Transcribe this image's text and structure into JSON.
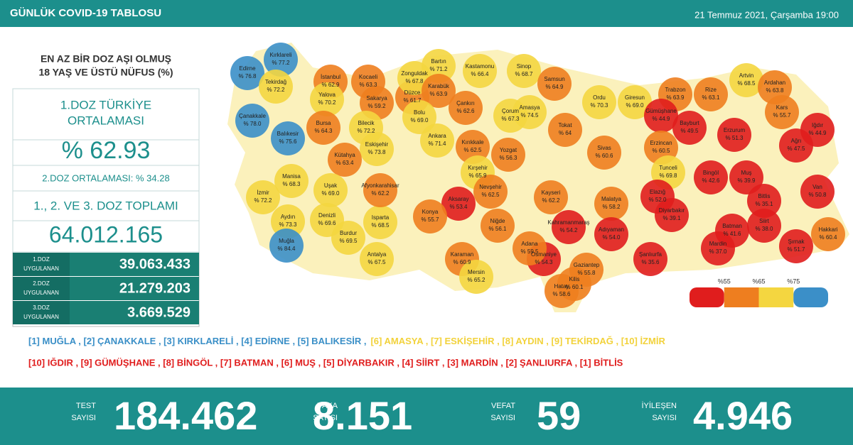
{
  "header": {
    "title": "GÜNLÜK COVID-19 TABLOSU",
    "date": "21 Temmuz 2021, Çarşamba 19:00"
  },
  "panel": {
    "title": [
      "EN AZ BİR DOZ AŞI OLMUŞ",
      "18 YAŞ VE ÜSTÜ NÜFUS (%)"
    ],
    "avg_label": [
      "1.DOZ TÜRKİYE",
      "ORTALAMASI"
    ],
    "avg_value": "% 62.93",
    "dose2_avg": "2.DOZ ORTALAMASI: % 34.28",
    "total_label": "1., 2. VE 3. DOZ TOPLAMI",
    "total_value": "64.012.165",
    "rows": [
      {
        "label": [
          "1.DOZ",
          "UYGULANAN"
        ],
        "value": "39.063.433"
      },
      {
        "label": [
          "2.DOZ",
          "UYGULANAN"
        ],
        "value": "21.279.203"
      },
      {
        "label": [
          "3.DOZ",
          "UYGULANAN"
        ],
        "value": "3.669.529"
      }
    ]
  },
  "map": {
    "legend": [
      {
        "value": 55,
        "label": "%55"
      },
      {
        "value": 65,
        "label": "%65"
      },
      {
        "value": 75,
        "label": "%75"
      }
    ],
    "colors": [
      "#e01d1d",
      "#ee7e1f",
      "#f4d640",
      "#3b8fc8"
    ],
    "provinces": [
      {
        "name": "Kırklareli",
        "value": 77.2,
        "label": "% 77.2"
      },
      {
        "name": "Edirne",
        "value": 76.8,
        "label": "% 76.8"
      },
      {
        "name": "Tekirdağ",
        "value": 72.2,
        "label": "% 72.2"
      },
      {
        "name": "İstanbul",
        "value": 62.9,
        "label": "% 62.9"
      },
      {
        "name": "Kocaeli",
        "value": 63.3,
        "label": "% 63.3"
      },
      {
        "name": "Yalova",
        "value": 70.2,
        "label": "% 70.2"
      },
      {
        "name": "Sakarya",
        "value": 59.2,
        "label": "% 59.2"
      },
      {
        "name": "Düzce",
        "value": 61.7,
        "label": "% 61.7"
      },
      {
        "name": "Zonguldak",
        "value": 67.8,
        "label": "% 67.8"
      },
      {
        "name": "Bartın",
        "value": 71.2,
        "label": "% 71.2"
      },
      {
        "name": "Karabük",
        "value": 63.9,
        "label": "% 63.9"
      },
      {
        "name": "Kastamonu",
        "value": 66.4,
        "label": "% 66.4"
      },
      {
        "name": "Sinop",
        "value": 68.7,
        "label": "% 68.7"
      },
      {
        "name": "Samsun",
        "value": 64.9,
        "label": "% 64.9"
      },
      {
        "name": "Ordu",
        "value": 70.3,
        "label": "% 70.3"
      },
      {
        "name": "Giresun",
        "value": 69.0,
        "label": "% 69.0"
      },
      {
        "name": "Trabzon",
        "value": 63.9,
        "label": "% 63.9"
      },
      {
        "name": "Rize",
        "value": 63.1,
        "label": "% 63.1"
      },
      {
        "name": "Artvin",
        "value": 68.5,
        "label": "% 68.5"
      },
      {
        "name": "Ardahan",
        "value": 63.8,
        "label": "% 63.8"
      },
      {
        "name": "Kars",
        "value": 55.7,
        "label": "% 55.7"
      },
      {
        "name": "Iğdır",
        "value": 44.9,
        "label": "% 44.9"
      },
      {
        "name": "Ağrı",
        "value": 47.5,
        "label": "% 47.5"
      },
      {
        "name": "Erzurum",
        "value": 51.3,
        "label": "% 51.3"
      },
      {
        "name": "Bayburt",
        "value": 49.5,
        "label": "% 49.5"
      },
      {
        "name": "Gümüşhane",
        "value": 44.9,
        "label": "% 44.9"
      },
      {
        "name": "Erzincan",
        "value": 60.5,
        "label": "% 60.5"
      },
      {
        "name": "Tunceli",
        "value": 69.8,
        "label": "% 69.8"
      },
      {
        "name": "Bingöl",
        "value": 42.6,
        "label": "% 42.6"
      },
      {
        "name": "Muş",
        "value": 39.9,
        "label": "% 39.9"
      },
      {
        "name": "Bitlis",
        "value": 35.1,
        "label": "% 35.1"
      },
      {
        "name": "Van",
        "value": 50.8,
        "label": "% 50.8"
      },
      {
        "name": "Hakkari",
        "value": 60.4,
        "label": "% 60.4"
      },
      {
        "name": "Şırnak",
        "value": 51.7,
        "label": "% 51.7"
      },
      {
        "name": "Siirt",
        "value": 38.0,
        "label": "% 38.0"
      },
      {
        "name": "Batman",
        "value": 41.6,
        "label": "% 41.6"
      },
      {
        "name": "Mardin",
        "value": 37.0,
        "label": "% 37.0"
      },
      {
        "name": "Diyarbakır",
        "value": 39.1,
        "label": "% 39.1"
      },
      {
        "name": "Elazığ",
        "value": 52.0,
        "label": "% 52.0"
      },
      {
        "name": "Malatya",
        "value": 58.2,
        "label": "% 58.2"
      },
      {
        "name": "Adıyaman",
        "value": 54.0,
        "label": "% 54.0"
      },
      {
        "name": "Şanlıurfa",
        "value": 35.6,
        "label": "% 35.6"
      },
      {
        "name": "Gaziantep",
        "value": 55.8,
        "label": "% 55.8"
      },
      {
        "name": "Kilis",
        "value": 60.1,
        "label": "% 60.1"
      },
      {
        "name": "Hatay",
        "value": 58.6,
        "label": "% 58.6"
      },
      {
        "name": "Osmaniye",
        "value": 54.3,
        "label": "% 54.3"
      },
      {
        "name": "Adana",
        "value": 59.5,
        "label": "% 59.5"
      },
      {
        "name": "Kahramanmaraş",
        "value": 54.2,
        "label": "% 54.2"
      },
      {
        "name": "Kayseri",
        "value": 62.2,
        "label": "% 62.2"
      },
      {
        "name": "Sivas",
        "value": 60.6,
        "label": "% 60.6"
      },
      {
        "name": "Tokat",
        "value": 64,
        "label": "% 64"
      },
      {
        "name": "Amasya",
        "value": 74.5,
        "label": "% 74.5"
      },
      {
        "name": "Çorum",
        "value": 67.3,
        "label": "% 67.3"
      },
      {
        "name": "Yozgat",
        "value": 56.3,
        "label": "% 56.3"
      },
      {
        "name": "Çankırı",
        "value": 62.6,
        "label": "% 62.6"
      },
      {
        "name": "Kırıkkale",
        "value": 62.5,
        "label": "% 62.5"
      },
      {
        "name": "Ankara",
        "value": 71.4,
        "label": "% 71.4"
      },
      {
        "name": "Bolu",
        "value": 69.0,
        "label": "% 69.0"
      },
      {
        "name": "Bilecik",
        "value": 72.2,
        "label": "% 72.2"
      },
      {
        "name": "Bursa",
        "value": 64.3,
        "label": "% 64.3"
      },
      {
        "name": "Balıkesir",
        "value": 75.6,
        "label": "% 75.6"
      },
      {
        "name": "Çanakkale",
        "value": 78.0,
        "label": "% 78.0"
      },
      {
        "name": "Eskişehir",
        "value": 73.8,
        "label": "% 73.8"
      },
      {
        "name": "Kütahya",
        "value": 63.4,
        "label": "% 63.4"
      },
      {
        "name": "Kırşehir",
        "value": 65.9,
        "label": "% 65.9"
      },
      {
        "name": "Nevşehir",
        "value": 62.5,
        "label": "% 62.5"
      },
      {
        "name": "Aksaray",
        "value": 53.4,
        "label": "% 53.4"
      },
      {
        "name": "Niğde",
        "value": 56.1,
        "label": "% 56.1"
      },
      {
        "name": "Konya",
        "value": 55.7,
        "label": "% 55.7"
      },
      {
        "name": "Karaman",
        "value": 60.9,
        "label": "% 60.9"
      },
      {
        "name": "Mersin",
        "value": 65.2,
        "label": "% 65.2"
      },
      {
        "name": "Antalya",
        "value": 67.5,
        "label": "% 67.5"
      },
      {
        "name": "Burdur",
        "value": 69.5,
        "label": "% 69.5"
      },
      {
        "name": "Isparta",
        "value": 68.5,
        "label": "% 68.5"
      },
      {
        "name": "Afyonkarahisar",
        "value": 62.2,
        "label": "% 62.2"
      },
      {
        "name": "Uşak",
        "value": 69.0,
        "label": "% 69.0"
      },
      {
        "name": "Manisa",
        "value": 68.3,
        "label": "% 68.3"
      },
      {
        "name": "İzmir",
        "value": 72.2,
        "label": "% 72.2"
      },
      {
        "name": "Aydın",
        "value": 73.3,
        "label": "% 73.3"
      },
      {
        "name": "Denizli",
        "value": 69.6,
        "label": "% 69.6"
      },
      {
        "name": "Muğla",
        "value": 84.4,
        "label": "% 84.4"
      }
    ]
  },
  "rankings": [
    {
      "first": "[1] MUĞLA , [2] ÇANAKKALE , [3] KIRKLARELİ , [4] EDİRNE , [5] BALIKESİR ,",
      "second": "[6] AMASYA , [7] ESKİŞEHİR , [8] AYDIN , [9] TEKİRDAĞ , [10] İZMİR"
    },
    {
      "first": "[10] IĞDIR , [9] GÜMÜŞHANE , [8] BİNGÖL , [7] BATMAN , [6] MUŞ , [5] DİYARBAKIR , [4] SİİRT , [3] MARDİN , [2] ŞANLIURFA , [1] BİTLİS"
    }
  ],
  "stats": [
    {
      "label": [
        "TEST",
        "SAYISI"
      ],
      "value": "184.462"
    },
    {
      "label": [
        "VAKA",
        "SAYISI"
      ],
      "value": "8.151"
    },
    {
      "label": [
        "VEFAT",
        "SAYISI"
      ],
      "value": "59"
    },
    {
      "label": [
        "İYİLEŞEN",
        "SAYISI"
      ],
      "value": "4.946"
    }
  ]
}
